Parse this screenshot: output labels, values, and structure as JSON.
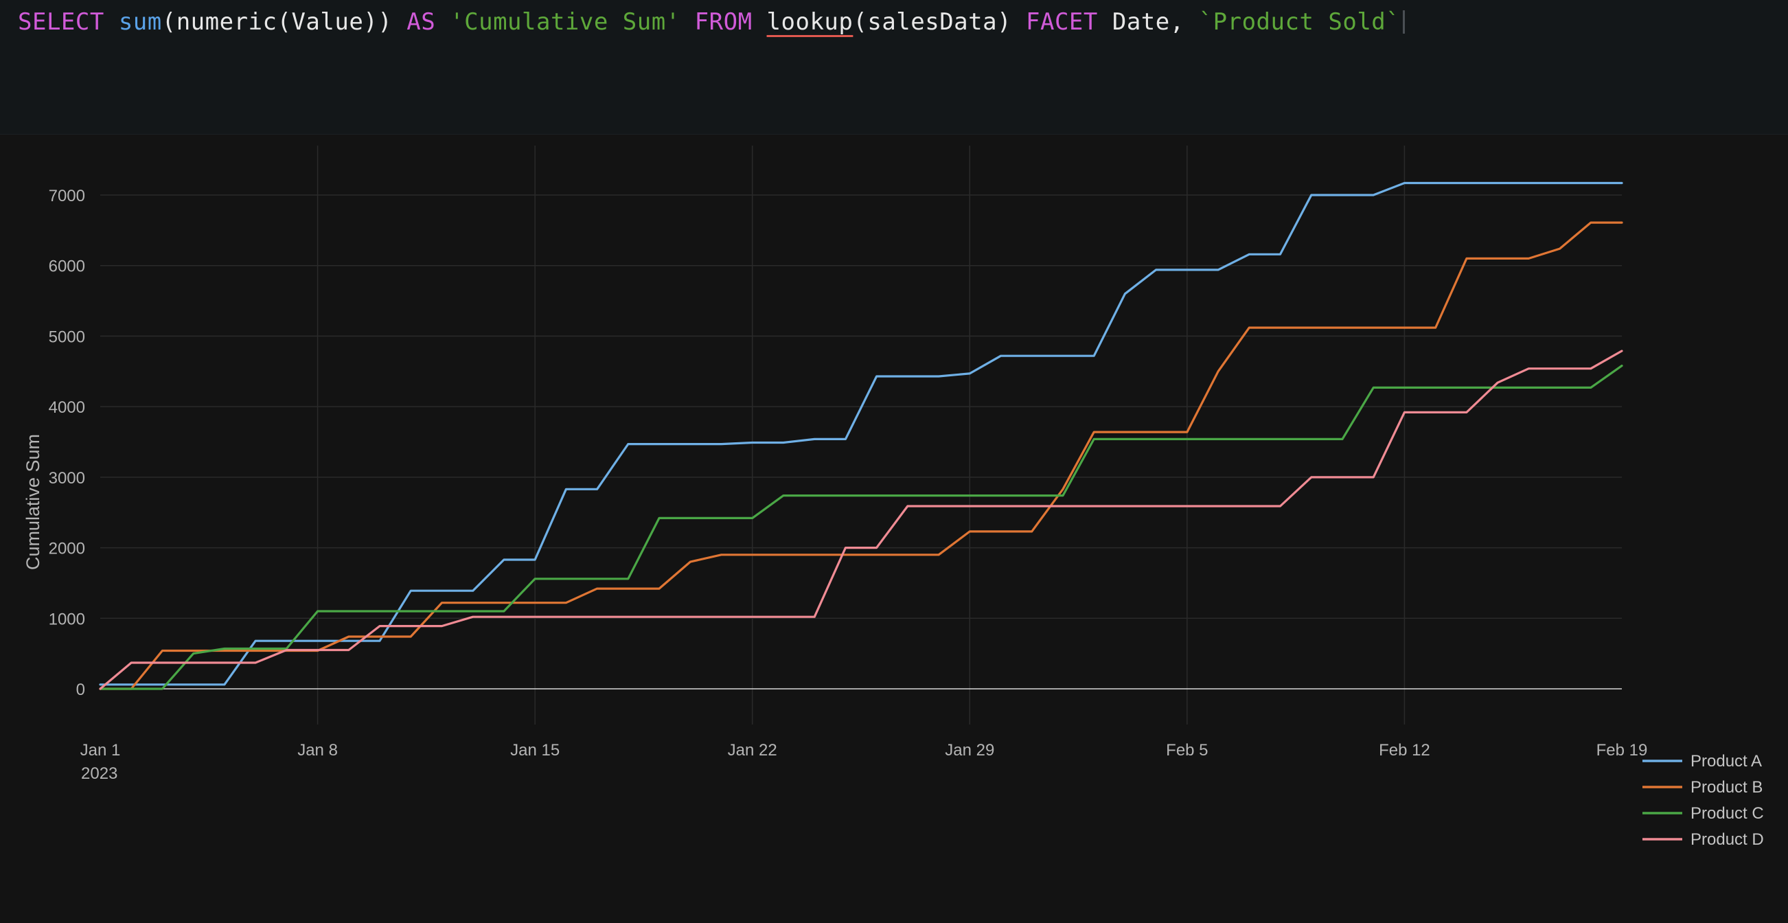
{
  "query": {
    "tokens": [
      {
        "text": "SELECT",
        "cls": "kw"
      },
      {
        "text": " ",
        "cls": "plain"
      },
      {
        "text": "sum",
        "cls": "fn"
      },
      {
        "text": "(numeric(Value)) ",
        "cls": "plain"
      },
      {
        "text": "AS",
        "cls": "kw"
      },
      {
        "text": " ",
        "cls": "plain"
      },
      {
        "text": "'Cumulative Sum'",
        "cls": "str"
      },
      {
        "text": " ",
        "cls": "plain"
      },
      {
        "text": "FROM",
        "cls": "kw"
      },
      {
        "text": " ",
        "cls": "plain"
      },
      {
        "text": "lookup",
        "cls": "plain err"
      },
      {
        "text": "(salesData) ",
        "cls": "plain"
      },
      {
        "text": "FACET",
        "cls": "kw"
      },
      {
        "text": " Date, ",
        "cls": "plain"
      },
      {
        "text": "`Product Sold`",
        "cls": "str"
      }
    ]
  },
  "chart_data": {
    "type": "line",
    "title": "",
    "xlabel": "",
    "ylabel": "Cumulative Sum",
    "x_start": "2023-01-01",
    "x_tick_labels": [
      "Jan 1",
      "Jan 8",
      "Jan 15",
      "Jan 22",
      "Jan 29",
      "Feb 5",
      "Feb 12",
      "Feb 19"
    ],
    "x_first_tick_year": "2023",
    "x_range": [
      "2023-01-01",
      "2023-02-19"
    ],
    "ylim": [
      0,
      7500
    ],
    "y_ticks": [
      0,
      1000,
      2000,
      3000,
      4000,
      5000,
      6000,
      7000
    ],
    "grid": true,
    "legend_position": "bottom-right",
    "x": [
      "2023-01-01",
      "2023-01-02",
      "2023-01-03",
      "2023-01-04",
      "2023-01-05",
      "2023-01-06",
      "2023-01-07",
      "2023-01-08",
      "2023-01-09",
      "2023-01-10",
      "2023-01-11",
      "2023-01-12",
      "2023-01-13",
      "2023-01-14",
      "2023-01-15",
      "2023-01-16",
      "2023-01-17",
      "2023-01-18",
      "2023-01-19",
      "2023-01-20",
      "2023-01-21",
      "2023-01-22",
      "2023-01-23",
      "2023-01-24",
      "2023-01-25",
      "2023-01-26",
      "2023-01-27",
      "2023-01-28",
      "2023-01-29",
      "2023-01-30",
      "2023-01-31",
      "2023-02-01",
      "2023-02-02",
      "2023-02-03",
      "2023-02-04",
      "2023-02-05",
      "2023-02-06",
      "2023-02-07",
      "2023-02-08",
      "2023-02-09",
      "2023-02-10",
      "2023-02-11",
      "2023-02-12",
      "2023-02-13",
      "2023-02-14",
      "2023-02-15",
      "2023-02-16",
      "2023-02-17",
      "2023-02-18",
      "2023-02-19"
    ],
    "series": [
      {
        "name": "Product A",
        "color": "#6fb0e6",
        "values": [
          60,
          60,
          60,
          60,
          60,
          680,
          680,
          680,
          680,
          680,
          1390,
          1390,
          1390,
          1830,
          1830,
          2830,
          2830,
          3470,
          3470,
          3470,
          3470,
          3490,
          3490,
          3540,
          3540,
          4430,
          4430,
          4430,
          4470,
          4720,
          4720,
          4720,
          4720,
          5600,
          5940,
          5940,
          5940,
          6160,
          6160,
          7000,
          7000,
          7000,
          7170,
          7170,
          7170,
          7170,
          7170,
          7170,
          7170,
          7170
        ]
      },
      {
        "name": "Product B",
        "color": "#e07634",
        "values": [
          0,
          0,
          540,
          540,
          540,
          540,
          540,
          540,
          740,
          740,
          740,
          1220,
          1220,
          1220,
          1220,
          1220,
          1420,
          1420,
          1420,
          1800,
          1900,
          1900,
          1900,
          1900,
          1900,
          1900,
          1900,
          1900,
          2230,
          2230,
          2230,
          2830,
          3640,
          3640,
          3640,
          3640,
          4500,
          5120,
          5120,
          5120,
          5120,
          5120,
          5120,
          5120,
          6100,
          6100,
          6100,
          6240,
          6610,
          6610
        ]
      },
      {
        "name": "Product C",
        "color": "#4aa746",
        "values": [
          0,
          0,
          0,
          500,
          570,
          570,
          570,
          1100,
          1100,
          1100,
          1100,
          1100,
          1100,
          1100,
          1560,
          1560,
          1560,
          1560,
          2420,
          2420,
          2420,
          2420,
          2740,
          2740,
          2740,
          2740,
          2740,
          2740,
          2740,
          2740,
          2740,
          2740,
          3540,
          3540,
          3540,
          3540,
          3540,
          3540,
          3540,
          3540,
          3540,
          4270,
          4270,
          4270,
          4270,
          4270,
          4270,
          4270,
          4270,
          4580
        ]
      },
      {
        "name": "Product D",
        "color": "#f08b94",
        "values": [
          0,
          370,
          370,
          370,
          370,
          370,
          550,
          550,
          550,
          890,
          890,
          890,
          1020,
          1020,
          1020,
          1020,
          1020,
          1020,
          1020,
          1020,
          1020,
          1020,
          1020,
          1020,
          2000,
          2000,
          2590,
          2590,
          2590,
          2590,
          2590,
          2590,
          2590,
          2590,
          2590,
          2590,
          2590,
          2590,
          2590,
          3000,
          3000,
          3000,
          3920,
          3920,
          3920,
          4340,
          4540,
          4540,
          4540,
          4790
        ]
      }
    ]
  }
}
